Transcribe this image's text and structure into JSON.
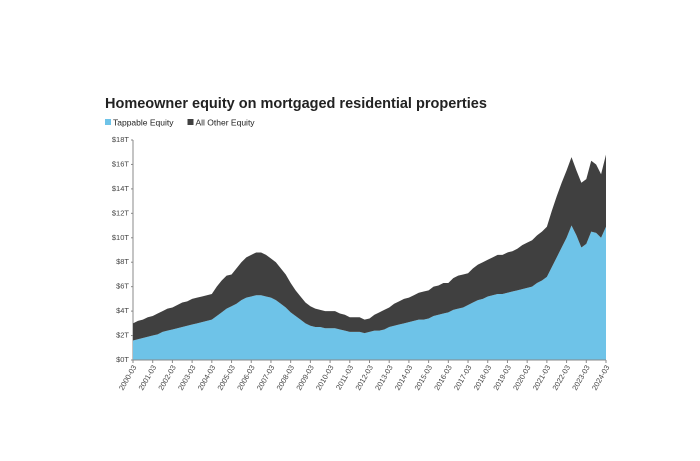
{
  "chart_data": {
    "type": "stacked-area",
    "title": "Homeowner equity on mortgaged residential properties",
    "categories": [
      "2000-03",
      null,
      null,
      null,
      "2001-03",
      null,
      null,
      null,
      "2002-03",
      null,
      null,
      null,
      "2003-03",
      null,
      null,
      null,
      "2004-03",
      null,
      null,
      null,
      "2005-03",
      null,
      null,
      null,
      "2006-03",
      null,
      null,
      null,
      "2007-03",
      null,
      null,
      null,
      "2008-03",
      null,
      null,
      null,
      "2009-03",
      null,
      null,
      null,
      "2010-03",
      null,
      null,
      null,
      "2011-03",
      null,
      null,
      null,
      "2012-03",
      null,
      null,
      null,
      "2013-03",
      null,
      null,
      null,
      "2014-03",
      null,
      null,
      null,
      "2015-03",
      null,
      null,
      null,
      "2016-03",
      null,
      null,
      null,
      "2017-03",
      null,
      null,
      null,
      "2018-03",
      null,
      null,
      null,
      "2019-03",
      null,
      null,
      null,
      "2020-03",
      null,
      null,
      null,
      "2021-03",
      null,
      null,
      null,
      "2022-03",
      null,
      null,
      null,
      "2023-03",
      null,
      null,
      null,
      "2024-03"
    ],
    "series": [
      {
        "name": "Tappable Equity",
        "color": "#6ec3e8",
        "values": [
          1.6,
          1.7,
          1.8,
          1.9,
          2.0,
          2.1,
          2.3,
          2.4,
          2.5,
          2.6,
          2.7,
          2.8,
          2.9,
          3.0,
          3.1,
          3.2,
          3.3,
          3.6,
          3.9,
          4.2,
          4.4,
          4.6,
          4.9,
          5.1,
          5.2,
          5.3,
          5.3,
          5.2,
          5.1,
          4.9,
          4.6,
          4.3,
          3.9,
          3.6,
          3.3,
          3.0,
          2.8,
          2.7,
          2.7,
          2.6,
          2.6,
          2.6,
          2.5,
          2.4,
          2.3,
          2.3,
          2.3,
          2.2,
          2.3,
          2.4,
          2.4,
          2.5,
          2.7,
          2.8,
          2.9,
          3.0,
          3.1,
          3.2,
          3.3,
          3.3,
          3.4,
          3.6,
          3.7,
          3.8,
          3.9,
          4.1,
          4.2,
          4.3,
          4.5,
          4.7,
          4.9,
          5.0,
          5.2,
          5.3,
          5.4,
          5.4,
          5.5,
          5.6,
          5.7,
          5.8,
          5.9,
          6.0,
          6.3,
          6.5,
          6.8,
          7.6,
          8.4,
          9.2,
          10.0,
          11.0,
          10.2,
          9.2,
          9.5,
          10.5,
          10.4,
          10.0,
          10.9
        ]
      },
      {
        "name": "All Other Equity",
        "color": "#404040",
        "values": [
          1.4,
          1.5,
          1.5,
          1.6,
          1.6,
          1.7,
          1.7,
          1.8,
          1.8,
          1.9,
          2.0,
          2.0,
          2.1,
          2.1,
          2.1,
          2.1,
          2.1,
          2.4,
          2.6,
          2.7,
          2.6,
          2.9,
          3.1,
          3.3,
          3.4,
          3.5,
          3.5,
          3.4,
          3.2,
          3.1,
          2.9,
          2.7,
          2.4,
          2.1,
          1.9,
          1.7,
          1.6,
          1.5,
          1.4,
          1.4,
          1.4,
          1.4,
          1.3,
          1.3,
          1.2,
          1.2,
          1.2,
          1.1,
          1.1,
          1.3,
          1.5,
          1.6,
          1.6,
          1.8,
          1.9,
          2.0,
          2.0,
          2.1,
          2.2,
          2.3,
          2.3,
          2.4,
          2.4,
          2.5,
          2.4,
          2.6,
          2.7,
          2.7,
          2.6,
          2.8,
          2.9,
          3.0,
          3.0,
          3.1,
          3.2,
          3.2,
          3.3,
          3.3,
          3.4,
          3.6,
          3.7,
          3.8,
          3.9,
          4.0,
          4.1,
          4.6,
          5.0,
          5.3,
          5.5,
          5.6,
          5.3,
          5.3,
          5.3,
          5.8,
          5.6,
          5.2,
          5.9
        ]
      }
    ],
    "ylim": [
      0,
      18
    ],
    "yticks": [
      {
        "value": 0,
        "label": "$0T"
      },
      {
        "value": 2,
        "label": "$2T"
      },
      {
        "value": 4,
        "label": "$4T"
      },
      {
        "value": 6,
        "label": "$6T"
      },
      {
        "value": 8,
        "label": "$8T"
      },
      {
        "value": 10,
        "label": "$10T"
      },
      {
        "value": 12,
        "label": "$12T"
      },
      {
        "value": 14,
        "label": "$14T"
      },
      {
        "value": 16,
        "label": "$16T"
      },
      {
        "value": 18,
        "label": "$18T"
      }
    ],
    "legend": "top-left"
  }
}
